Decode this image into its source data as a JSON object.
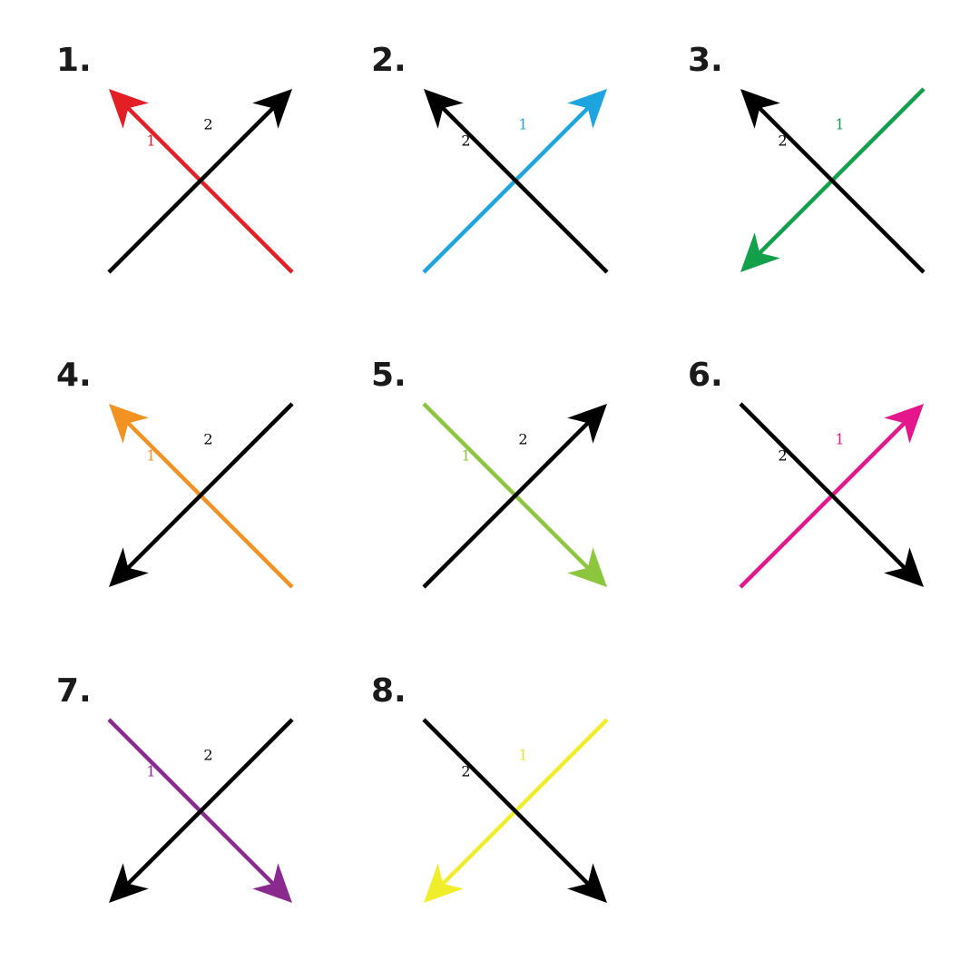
{
  "diagrams": [
    {
      "number": "1.",
      "arrows": [
        {
          "label": "1",
          "color": "#e31e24",
          "tail": "bottom-right",
          "head": "top-left"
        },
        {
          "label": "2",
          "color": "#000000",
          "tail": "bottom-left",
          "head": "top-right"
        }
      ]
    },
    {
      "number": "2.",
      "arrows": [
        {
          "label": "1",
          "color": "#1ea5e0",
          "tail": "bottom-left",
          "head": "top-right"
        },
        {
          "label": "2",
          "color": "#000000",
          "tail": "bottom-right",
          "head": "top-left"
        }
      ]
    },
    {
      "number": "3.",
      "arrows": [
        {
          "label": "1",
          "color": "#12a04a",
          "tail": "top-right",
          "head": "bottom-left"
        },
        {
          "label": "2",
          "color": "#000000",
          "tail": "bottom-right",
          "head": "top-left"
        }
      ]
    },
    {
      "number": "4.",
      "arrows": [
        {
          "label": "1",
          "color": "#f29222",
          "tail": "bottom-right",
          "head": "top-left"
        },
        {
          "label": "2",
          "color": "#000000",
          "tail": "top-right",
          "head": "bottom-left"
        }
      ]
    },
    {
      "number": "5.",
      "arrows": [
        {
          "label": "1",
          "color": "#8cc63f",
          "tail": "top-left",
          "head": "bottom-right"
        },
        {
          "label": "2",
          "color": "#000000",
          "tail": "bottom-left",
          "head": "top-right"
        }
      ]
    },
    {
      "number": "6.",
      "arrows": [
        {
          "label": "1",
          "color": "#e5168c",
          "tail": "bottom-left",
          "head": "top-right"
        },
        {
          "label": "2",
          "color": "#000000",
          "tail": "top-left",
          "head": "bottom-right"
        }
      ]
    },
    {
      "number": "7.",
      "arrows": [
        {
          "label": "1",
          "color": "#8b2a8e",
          "tail": "top-left",
          "head": "bottom-right"
        },
        {
          "label": "2",
          "color": "#000000",
          "tail": "top-right",
          "head": "bottom-left"
        }
      ]
    },
    {
      "number": "8.",
      "arrows": [
        {
          "label": "1",
          "color": "#f0ee2a",
          "tail": "top-right",
          "head": "bottom-left"
        },
        {
          "label": "2",
          "color": "#000000",
          "tail": "top-left",
          "head": "bottom-right"
        }
      ]
    }
  ]
}
